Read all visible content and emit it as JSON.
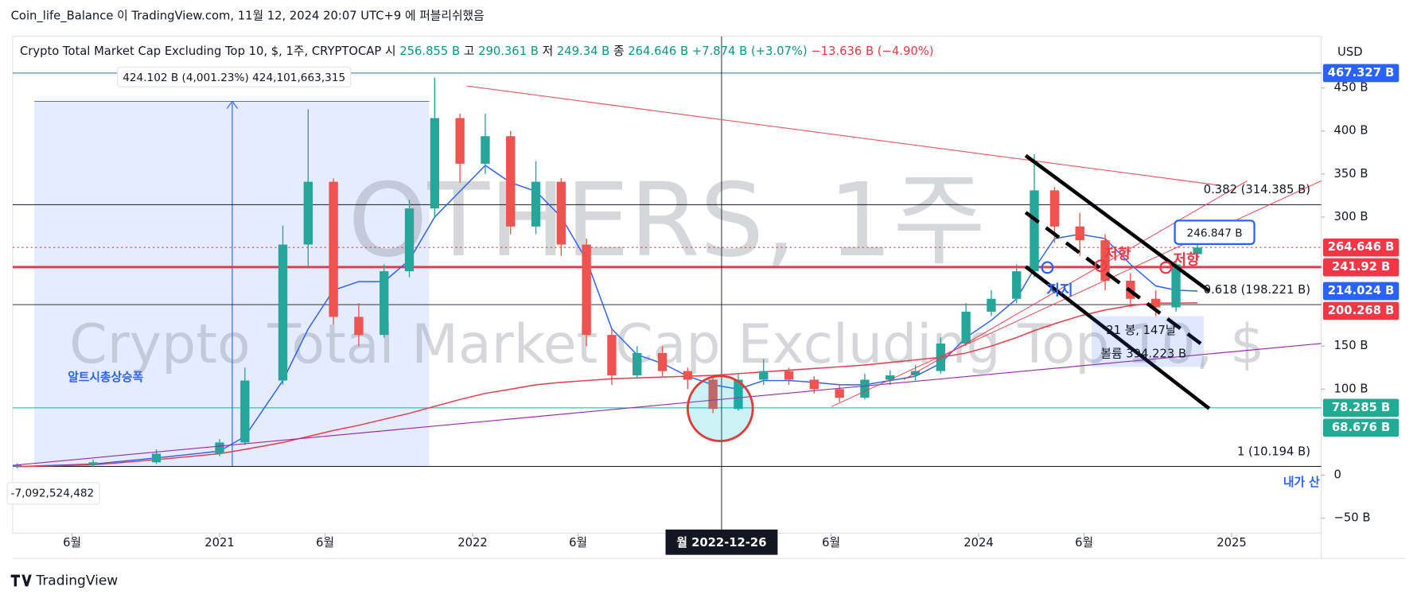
{
  "header": "Coin_life_Balance 이 TradingView.com, 11월 12, 2024 20:07 UTC+9 에 퍼블리쉬했음",
  "legend_bar": {
    "symbol": "Crypto Total Market Cap Excluding Top 10, $, 1주, CRYPTOCAP",
    "items": [
      {
        "key": "시",
        "value": "256.855 B"
      },
      {
        "key": "고",
        "value": "290.361 B"
      },
      {
        "key": "저",
        "value": "249.34 B"
      },
      {
        "key": "종",
        "value": "264.646 B"
      }
    ],
    "change": "+7.874 B (+3.07%)",
    "change2": "−13.636 B (−4.90%)"
  },
  "currency": "USD",
  "annotations": {
    "measure": "424.102 B (4,001.23%) 424,101,663,315",
    "measure_name": "알트시총상승폭",
    "volume_value": "-7,092,524,482",
    "target": "246.847 B",
    "bars": "21 봉, 147날",
    "range_volume": "볼륨 394.223 B",
    "support": "지지",
    "resistance": "저항",
    "note": "내가 산"
  },
  "footer": "TradingView",
  "chart_data": {
    "type": "candlestick",
    "title": "OTHERS, 1주",
    "subtitle": "Crypto Total Market Cap Excluding Top 10, $",
    "x": [
      2020.2,
      2020.5,
      2020.75,
      2021.0,
      2021.1,
      2021.25,
      2021.35,
      2021.45,
      2021.55,
      2021.65,
      2021.75,
      2021.85,
      2021.95,
      2022.05,
      2022.15,
      2022.25,
      2022.35,
      2022.45,
      2022.55,
      2022.65,
      2022.75,
      2022.85,
      2022.95,
      2023.05,
      2023.15,
      2023.25,
      2023.35,
      2023.45,
      2023.55,
      2023.65,
      2023.75,
      2023.85,
      2023.95,
      2024.05,
      2024.15,
      2024.22,
      2024.3,
      2024.4,
      2024.5,
      2024.6,
      2024.7,
      2024.78,
      2024.865
    ],
    "open": [
      10,
      12,
      15,
      25,
      38,
      110,
      268,
      341,
      184,
      163,
      237,
      310,
      415,
      362,
      394,
      289,
      341,
      268,
      163,
      116,
      142,
      121,
      111,
      77,
      111,
      121,
      111,
      100,
      90,
      111,
      116,
      121,
      153,
      190,
      205,
      237,
      331,
      289,
      273,
      226,
      205,
      195,
      256.855
    ],
    "high": [
      14,
      18,
      30,
      42,
      125,
      290,
      425,
      345,
      200,
      245,
      320,
      462,
      420,
      420,
      400,
      365,
      345,
      275,
      170,
      150,
      150,
      125,
      115,
      118,
      135,
      125,
      115,
      105,
      118,
      122,
      128,
      160,
      200,
      215,
      245,
      373,
      335,
      305,
      280,
      235,
      215,
      250,
      290.361
    ],
    "low": [
      8,
      10,
      13,
      22,
      35,
      105,
      240,
      175,
      150,
      160,
      230,
      300,
      340,
      350,
      280,
      280,
      255,
      150,
      105,
      112,
      115,
      100,
      72,
      75,
      105,
      105,
      95,
      85,
      88,
      105,
      110,
      118,
      150,
      185,
      200,
      230,
      270,
      255,
      215,
      195,
      185,
      190,
      249.34
    ],
    "close": [
      12,
      15,
      25,
      38,
      110,
      268,
      341,
      184,
      163,
      237,
      310,
      415,
      362,
      394,
      289,
      341,
      268,
      163,
      116,
      142,
      121,
      111,
      77,
      111,
      121,
      111,
      100,
      90,
      111,
      116,
      121,
      153,
      190,
      205,
      237,
      331,
      289,
      273,
      226,
      205,
      195,
      245,
      264.646
    ],
    "up_color": "#26a69a",
    "down_color": "#ef5350",
    "series": [
      {
        "color": "#2962ff",
        "values": [
          10,
          13,
          20,
          28,
          45,
          110,
          170,
          215,
          225,
          225,
          250,
          300,
          330,
          360,
          340,
          330,
          300,
          250,
          170,
          140,
          130,
          115,
          105,
          100,
          110,
          110,
          108,
          105,
          105,
          110,
          115,
          130,
          160,
          180,
          205,
          240,
          275,
          280,
          275,
          245,
          220,
          215,
          214.024
        ]
      },
      {
        "color": "#f23645",
        "values": [
          10,
          12,
          18,
          25,
          30,
          38,
          45,
          52,
          58,
          65,
          72,
          80,
          88,
          95,
          100,
          105,
          108,
          110,
          112,
          113,
          114,
          115,
          116,
          118,
          120,
          122,
          124,
          126,
          128,
          131,
          134,
          137,
          142,
          150,
          160,
          168,
          176,
          185,
          192,
          197,
          200,
          200,
          200.268
        ]
      }
    ],
    "xlim": [
      2020.182,
      2025.354
    ],
    "xticks": [
      {
        "value": 2020.417,
        "label": "6월"
      },
      {
        "value": 2021.0,
        "label": "2021"
      },
      {
        "value": 2021.417,
        "label": "6월"
      },
      {
        "value": 2022.0,
        "label": "2022"
      },
      {
        "value": 2022.417,
        "label": "6월"
      },
      {
        "value": 2023.417,
        "label": "6월"
      },
      {
        "value": 2024.0,
        "label": "2024"
      },
      {
        "value": 2024.417,
        "label": "6월"
      },
      {
        "value": 2025.0,
        "label": "2025"
      }
    ],
    "ylim": [
      -60,
      510
    ],
    "yticks": [
      {
        "value": -50,
        "label": "−50 B"
      },
      0,
      {
        "value": 100,
        "label": "100 B"
      },
      {
        "value": 150,
        "label": "150 B"
      },
      {
        "value": 300,
        "label": "300 B"
      },
      {
        "value": 350,
        "label": "350 B"
      },
      {
        "value": 400,
        "label": "400 B"
      },
      {
        "value": 450,
        "label": "450 B"
      }
    ],
    "grid": false,
    "crosshair": {
      "x": 2022.984,
      "label": "월 2022-12-26"
    },
    "levels": [
      {
        "value": 314.385,
        "label": "0.382 (314.385 B)"
      },
      {
        "value": 198.221,
        "label": "0.618 (198.221 B)"
      },
      {
        "value": 10.194,
        "label": "1 (10.194 B)"
      }
    ],
    "price_labels": [
      {
        "value": 467.327,
        "label": "467.327 B",
        "color": "#2962ff",
        "line": "solid"
      },
      {
        "value": 264.646,
        "label": "264.646 B",
        "color": "#f23645",
        "line": "dotted"
      },
      {
        "value": 241.92,
        "label": "241.92 B",
        "color": "#f23645",
        "line": "thick"
      },
      {
        "value": 214.024,
        "label": "214.024 B",
        "color": "#2962ff",
        "line": "none"
      },
      {
        "value": 200.268,
        "label": "200.268 B",
        "color": "#f23645",
        "line": "none"
      },
      {
        "value": 78.285,
        "label": "78.285 B",
        "color": "#22ab94",
        "line": "solid"
      },
      {
        "value": 68.676,
        "label": "68.676 B",
        "color": "#22ab94",
        "line": "none"
      }
    ]
  }
}
